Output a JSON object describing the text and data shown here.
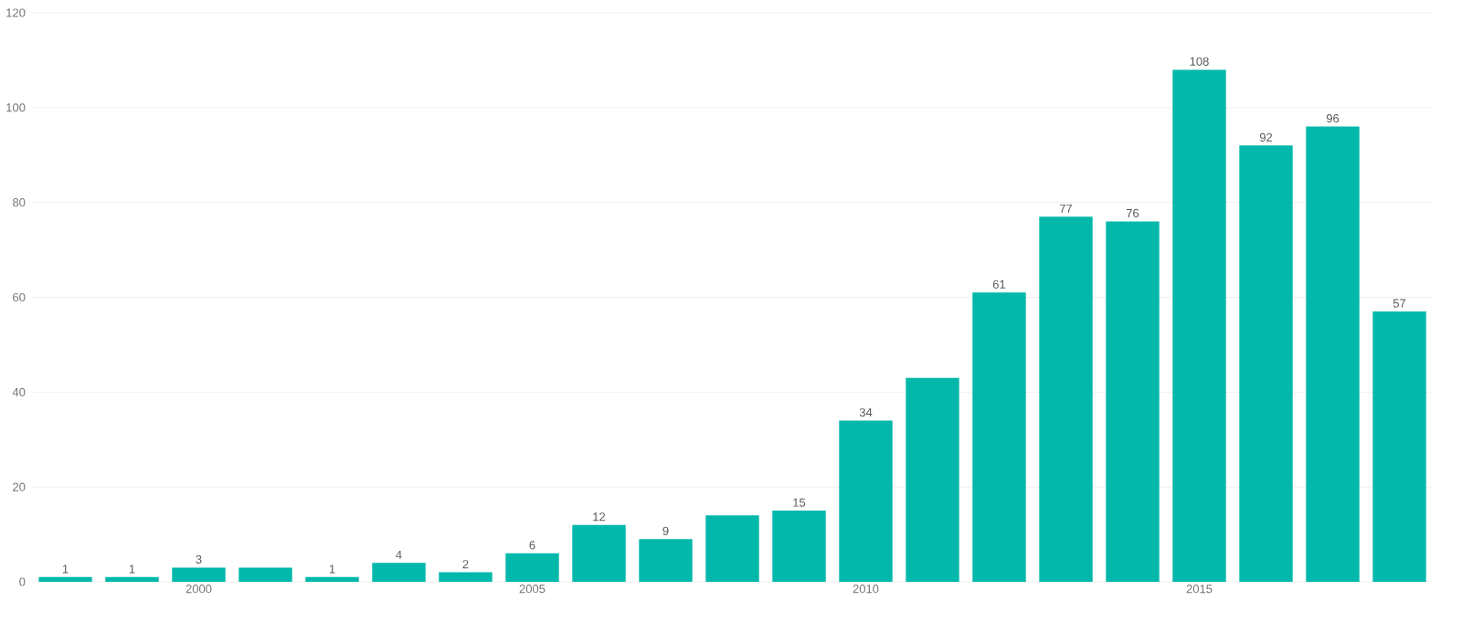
{
  "chart_data": {
    "type": "bar",
    "x": [
      1998,
      1999,
      2000,
      2001,
      2002,
      2003,
      2004,
      2005,
      2006,
      2007,
      2008,
      2009,
      2010,
      2011,
      2012,
      2013,
      2014,
      2015,
      2016,
      2017,
      2018
    ],
    "values": [
      1,
      1,
      3,
      3,
      1,
      4,
      2,
      6,
      12,
      9,
      14,
      15,
      34,
      43,
      61,
      77,
      76,
      108,
      92,
      96,
      57
    ],
    "value_labels": [
      "1",
      "1",
      "3",
      null,
      "1",
      "4",
      "2",
      "6",
      "12",
      "9",
      null,
      "15",
      "34",
      null,
      "61",
      "77",
      "76",
      "108",
      "92",
      "96",
      "57"
    ],
    "color": "#01b8aa",
    "xlim": [
      1997.5,
      2018.5
    ],
    "xticks": [
      2000,
      2005,
      2010,
      2015
    ],
    "ylim": [
      0,
      120
    ],
    "yticks": [
      0,
      20,
      40,
      60,
      80,
      100,
      120
    ],
    "grid": "y"
  }
}
